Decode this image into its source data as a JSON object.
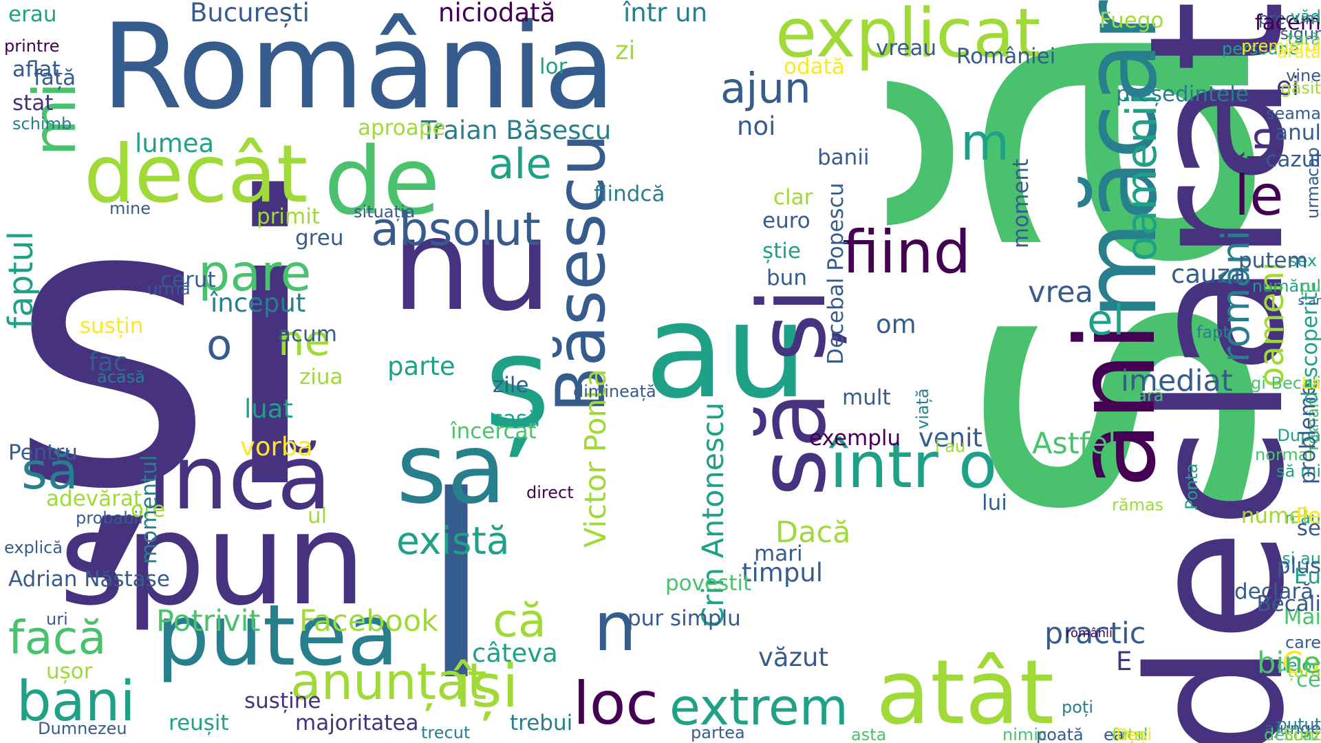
{
  "palette": {
    "v0": "#46327e",
    "v1": "#365c8d",
    "v2": "#277f8e",
    "v3": "#1fa187",
    "v4": "#4ac16d",
    "v5": "#a0da39",
    "v6": "#fde725",
    "v7": "#440154"
  },
  "words": [
    {
      "t": "și",
      "c": "v0"
    },
    {
      "t": "să",
      "c": "v4"
    },
    {
      "t": "România",
      "c": "v1"
    },
    {
      "t": "declarat",
      "c": "v0"
    },
    {
      "t": "nu",
      "c": "v0"
    },
    {
      "t": "l",
      "c": "v1"
    },
    {
      "t": "au",
      "c": "v3"
    },
    {
      "t": "spun",
      "c": "v0"
    },
    {
      "t": "ș",
      "c": "v3"
    },
    {
      "t": "decât",
      "c": "v5"
    },
    {
      "t": "de",
      "c": "v4"
    },
    {
      "t": "mi",
      "c": "v4"
    },
    {
      "t": "explicat",
      "c": "v5"
    },
    {
      "t": "măcar",
      "c": "v2"
    },
    {
      "t": "încă",
      "c": "v0"
    },
    {
      "t": "sa",
      "c": "v2"
    },
    {
      "t": "putea",
      "c": "v2"
    },
    {
      "t": "ani",
      "c": "v7"
    },
    {
      "t": "să și",
      "c": "v0"
    },
    {
      "t": "atât",
      "c": "v5"
    },
    {
      "t": "Băsescu",
      "c": "v1"
    },
    {
      "t": "fiind",
      "c": "v7"
    },
    {
      "t": "într o",
      "c": "v3"
    },
    {
      "t": "absolut",
      "c": "v1"
    },
    {
      "t": "bani",
      "c": "v3"
    },
    {
      "t": "anunțat",
      "c": "v5"
    },
    {
      "t": "își",
      "c": "v5"
    },
    {
      "t": "loc",
      "c": "v7"
    },
    {
      "t": "n",
      "c": "v1"
    },
    {
      "t": "extrem",
      "c": "v3"
    },
    {
      "t": "pare",
      "c": "v4"
    },
    {
      "t": "ajun",
      "c": "v1"
    },
    {
      "t": "m",
      "c": "v3"
    },
    {
      "t": "le",
      "c": "v7"
    },
    {
      "t": "ale",
      "c": "v3"
    },
    {
      "t": "o",
      "c": "v1"
    },
    {
      "t": "ne",
      "c": "v5"
    },
    {
      "t": "el",
      "c": "v3"
    },
    {
      "t": "oamenii",
      "c": "v3"
    },
    {
      "t": "români",
      "c": "v2"
    },
    {
      "t": "oameni",
      "c": "v5"
    },
    {
      "t": "facă",
      "c": "v4"
    },
    {
      "t": "faptul",
      "c": "v3"
    },
    {
      "t": "există",
      "c": "v3"
    },
    {
      "t": "să",
      "c": "v2"
    },
    {
      "t": "că",
      "c": "v5"
    },
    {
      "t": "Potrivit",
      "c": "v4"
    },
    {
      "t": "Facebook",
      "c": "v5"
    },
    {
      "t": "Victor Ponta",
      "c": "v5"
    },
    {
      "t": "Crin Antonescu",
      "c": "v3"
    },
    {
      "t": "Traian Băsescu",
      "c": "v2"
    },
    {
      "t": "cauza",
      "c": "v1"
    },
    {
      "t": "Astfel",
      "c": "v4"
    },
    {
      "t": "imediat",
      "c": "v1"
    },
    {
      "t": "practic",
      "c": "v1"
    },
    {
      "t": "vrea",
      "c": "v1"
    },
    {
      "t": "venit",
      "c": "v1"
    },
    {
      "t": "timpul",
      "c": "v1"
    },
    {
      "t": "Dacă",
      "c": "v5"
    },
    {
      "t": "văzut",
      "c": "v1"
    },
    {
      "t": "om",
      "c": "v1"
    },
    {
      "t": "În",
      "c": "v0"
    },
    {
      "t": "ei",
      "c": "v0"
    },
    {
      "t": "început",
      "c": "v2"
    },
    {
      "t": "câteva",
      "c": "v3"
    },
    {
      "t": "susține",
      "c": "v0"
    },
    {
      "t": "vorba",
      "c": "v6"
    },
    {
      "t": "parte",
      "c": "v3"
    },
    {
      "t": "luat",
      "c": "v3"
    },
    {
      "t": "lumea",
      "c": "v3"
    },
    {
      "t": "noi",
      "c": "v1"
    },
    {
      "t": "fac",
      "c": "v1"
    },
    {
      "t": "E",
      "c": "v0"
    },
    {
      "t": "București",
      "c": "v1"
    },
    {
      "t": "niciodată",
      "c": "v7"
    },
    {
      "t": "într un",
      "c": "v2"
    },
    {
      "t": "zi",
      "c": "v5"
    },
    {
      "t": "erau",
      "c": "v3"
    },
    {
      "t": "față",
      "c": "v1"
    },
    {
      "t": "printre",
      "c": "v7"
    },
    {
      "t": "aflat",
      "c": "v1"
    },
    {
      "t": "stat",
      "c": "v0"
    },
    {
      "t": "lor",
      "c": "v3"
    },
    {
      "t": "odată",
      "c": "v6"
    },
    {
      "t": "vreau",
      "c": "v1"
    },
    {
      "t": "României",
      "c": "v1"
    },
    {
      "t": "Fuego",
      "c": "v5"
    },
    {
      "t": "precum",
      "c": "v1"
    },
    {
      "t": "sigur",
      "c": "v1"
    },
    {
      "t": "persoane",
      "c": "v3"
    },
    {
      "t": "arată",
      "c": "v6"
    },
    {
      "t": "președintele",
      "c": "v2"
    },
    {
      "t": "anul",
      "c": "v1"
    },
    {
      "t": "cazul",
      "c": "v1"
    },
    {
      "t": "banii",
      "c": "v1"
    },
    {
      "t": "aproape",
      "c": "v5"
    },
    {
      "t": "schimb",
      "c": "v2"
    },
    {
      "t": "mine",
      "c": "v1"
    },
    {
      "t": "primit",
      "c": "v5"
    },
    {
      "t": "situația",
      "c": "v1"
    },
    {
      "t": "greu",
      "c": "v1"
    },
    {
      "t": "clar",
      "c": "v5"
    },
    {
      "t": "fiindcă",
      "c": "v2"
    },
    {
      "t": "euro",
      "c": "v1"
    },
    {
      "t": "știe",
      "c": "v3"
    },
    {
      "t": "bun",
      "c": "v1"
    },
    {
      "t": "mult",
      "c": "v1"
    },
    {
      "t": "cerut",
      "c": "v1"
    },
    {
      "t": "urmă",
      "c": "v1"
    },
    {
      "t": "susțin",
      "c": "v6"
    },
    {
      "t": "acum",
      "c": "v1"
    },
    {
      "t": "ziua",
      "c": "v5"
    },
    {
      "t": "casă",
      "c": "v3"
    },
    {
      "t": "dimineață",
      "c": "v1"
    },
    {
      "t": "acasă",
      "c": "v2"
    },
    {
      "t": "zile",
      "c": "v1"
    },
    {
      "t": "încercat",
      "c": "v4"
    },
    {
      "t": "direct",
      "c": "v7"
    },
    {
      "t": "probabil",
      "c": "v1"
    },
    {
      "t": "ore",
      "c": "v5"
    },
    {
      "t": "Pentru",
      "c": "v1"
    },
    {
      "t": "adevărat",
      "c": "v5"
    },
    {
      "t": "ul",
      "c": "v5"
    },
    {
      "t": "explică",
      "c": "v1"
    },
    {
      "t": "Adrian Năstase",
      "c": "v1"
    },
    {
      "t": "uri",
      "c": "v1"
    },
    {
      "t": "ușor",
      "c": "v5"
    },
    {
      "t": "Dumnezeu",
      "c": "v1"
    },
    {
      "t": "reușit",
      "c": "v3"
    },
    {
      "t": "majoritatea",
      "c": "v0"
    },
    {
      "t": "trecut",
      "c": "v2"
    },
    {
      "t": "trebui",
      "c": "v2"
    },
    {
      "t": "partea",
      "c": "v1"
    },
    {
      "t": "momentul",
      "c": "v2"
    },
    {
      "t": "povestit",
      "c": "v4"
    },
    {
      "t": "pur simplu",
      "c": "v1"
    },
    {
      "t": "mari",
      "c": "v1"
    },
    {
      "t": "lui",
      "c": "v1"
    },
    {
      "t": "rămas",
      "c": "v5"
    },
    {
      "t": "moment",
      "c": "v1"
    },
    {
      "t": "Decebal Popescu",
      "c": "v1"
    },
    {
      "t": "exemplu",
      "c": "v7"
    },
    {
      "t": "viață",
      "c": "v2"
    },
    {
      "t": "l au",
      "c": "v5"
    },
    {
      "t": "afară",
      "c": "v4"
    },
    {
      "t": "fapt",
      "c": "v2"
    },
    {
      "t": "sex",
      "c": "v3"
    },
    {
      "t": "putem",
      "c": "v1"
    },
    {
      "t": "După",
      "c": "v3"
    },
    {
      "t": "să mi",
      "c": "v3"
    },
    {
      "t": "și au",
      "c": "v3"
    },
    {
      "t": "normal",
      "c": "v4"
    },
    {
      "t": "deloc",
      "c": "v3"
    },
    {
      "t": "român",
      "c": "v4"
    },
    {
      "t": "probleme",
      "c": "v1"
    },
    {
      "t": "plus",
      "c": "v1"
    },
    {
      "t": "descoperit",
      "c": "v3"
    },
    {
      "t": "declară",
      "c": "v1"
    },
    {
      "t": "Eu",
      "c": "v3"
    },
    {
      "t": "Mai",
      "c": "v4"
    },
    {
      "t": "care",
      "c": "v1"
    },
    {
      "t": "ce",
      "c": "v4"
    },
    {
      "t": "țara",
      "c": "v5"
    },
    {
      "t": "Ponta",
      "c": "v3"
    },
    {
      "t": "n au",
      "c": "v3"
    },
    {
      "t": "s ar",
      "c": "v1"
    },
    {
      "t": "vine",
      "c": "v1"
    },
    {
      "t": "facem",
      "c": "v7"
    },
    {
      "t": "văd",
      "c": "v3"
    },
    {
      "t": "țară",
      "c": "v4"
    },
    {
      "t": "găsit",
      "c": "v5"
    },
    {
      "t": "premierul",
      "c": "v6"
    },
    {
      "t": "urma",
      "c": "v1"
    },
    {
      "t": "seama",
      "c": "v1"
    },
    {
      "t": "cap",
      "c": "v1"
    },
    {
      "t": "Ca",
      "c": "v6"
    },
    {
      "t": "numele",
      "c": "v5"
    },
    {
      "t": "Gigi Becali",
      "c": "v4"
    },
    {
      "t": "numărul",
      "c": "v3"
    },
    {
      "t": "Becali",
      "c": "v1"
    },
    {
      "t": "ajunge",
      "c": "v1"
    },
    {
      "t": "putut",
      "c": "v2"
    },
    {
      "t": "se",
      "c": "v1"
    },
    {
      "t": "deci",
      "c": "v4"
    },
    {
      "t": "poți",
      "c": "v2"
    },
    {
      "t": "nimic",
      "c": "v4"
    },
    {
      "t": "cred",
      "c": "v4"
    },
    {
      "t": "românii",
      "c": "v7"
    },
    {
      "t": "fața",
      "c": "v5"
    },
    {
      "t": "caz",
      "c": "v4"
    },
    {
      "t": "asta",
      "c": "v4"
    },
    {
      "t": "ea",
      "c": "v1"
    },
    {
      "t": "poată",
      "c": "v1"
    },
    {
      "t": "Deși",
      "c": "v6"
    },
    {
      "t": "Sunt",
      "c": "v5"
    },
    {
      "t": "bine",
      "c": "v4"
    },
    {
      "t": "Pe",
      "c": "v6"
    },
    {
      "t": "La",
      "c": "v6"
    },
    {
      "t": "pu",
      "c": "v4"
    }
  ]
}
